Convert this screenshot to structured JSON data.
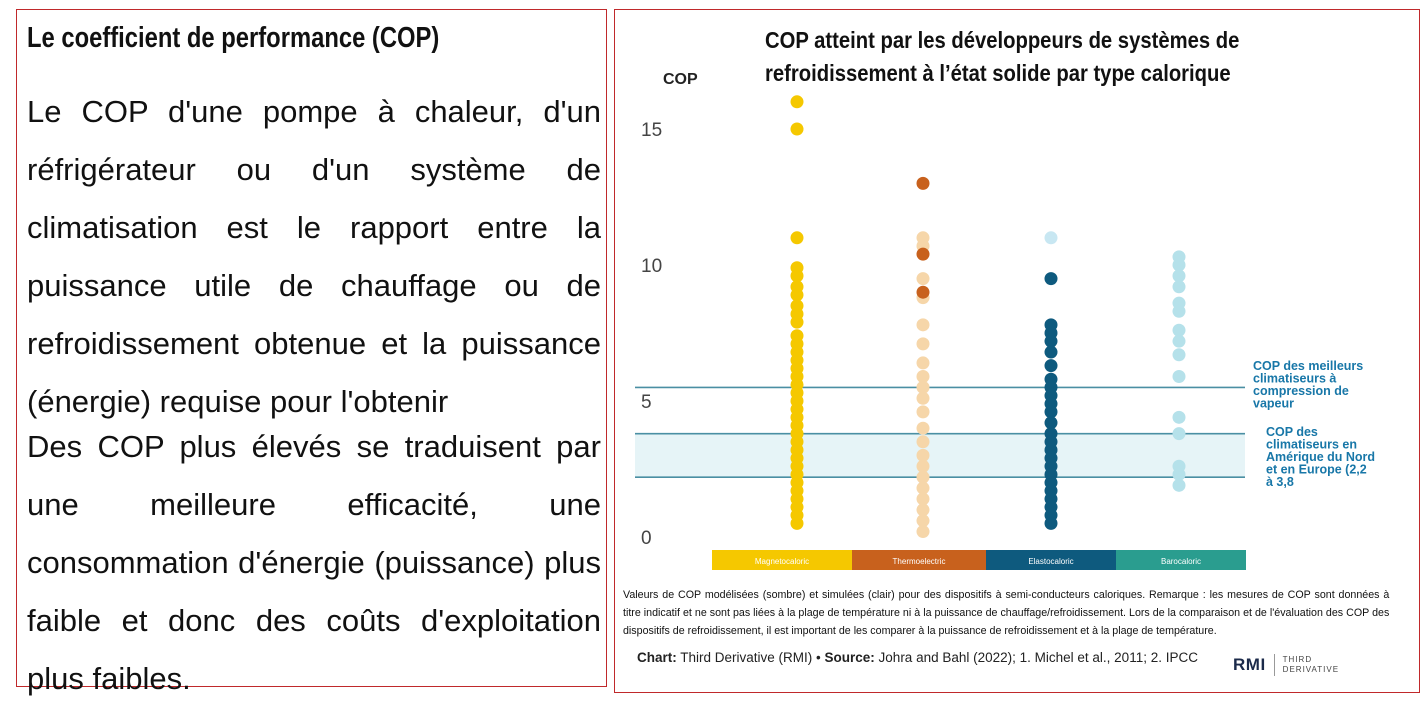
{
  "slide": {
    "title": "Le coefficient de performance (COP)",
    "paragraph1": "Le COP d'une pompe à chaleur, d'un réfrigérateur ou d'un système de climatisation est le rapport entre la puissance utile de chauffage ou de refroidissement obtenue et la puissance (énergie) requise pour l'obtenir",
    "paragraph2": "Des COP plus élevés se traduisent par une meilleure efficacité, une consommation d'énergie (puissance) plus faible et donc des coûts d'exploitation plus faibles."
  },
  "colors": {
    "border": "#c0292b",
    "magnetocaloric": "#f5c800",
    "thermoelectric": "#c8611d",
    "elastocaloric": "#0e5a7e",
    "barocaloric": "#2a9d8f",
    "reference_line": "#4a8fa3",
    "band": "#e6f4f7",
    "annotation": "#1877a8"
  },
  "chart_data": {
    "type": "scatter",
    "title": "COP atteint par les développeurs de systèmes de refroidissement à l’état solide par type calorique",
    "ylabel": "COP",
    "ylim": [
      0,
      17
    ],
    "yticks": [
      0,
      5,
      10,
      15
    ],
    "categories": [
      "Magnetocaloric",
      "Thermoelectric",
      "Elastocaloric",
      "Barocaloric"
    ],
    "series": [
      {
        "name": "Magnetocaloric",
        "modeled": [],
        "simulated": [
          16,
          15,
          11,
          9.9,
          9.6,
          9.2,
          8.9,
          8.5,
          8.2,
          7.9,
          7.4,
          7.1,
          6.8,
          6.5,
          6.2,
          5.9,
          5.6,
          5.3,
          5.0,
          4.7,
          4.4,
          4.1,
          3.8,
          3.5,
          3.2,
          2.9,
          2.6,
          2.3,
          2.0,
          1.7,
          1.4,
          1.1,
          0.8,
          0.5
        ]
      },
      {
        "name": "Thermoelectric",
        "modeled": [
          13,
          10.4,
          9.0
        ],
        "simulated": [
          11,
          10.7,
          9.5,
          8.8,
          7.8,
          7.1,
          6.4,
          5.9,
          5.5,
          5.1,
          4.6,
          4.0,
          3.5,
          3.0,
          2.6,
          2.2,
          1.8,
          1.4,
          1.0,
          0.6,
          0.2
        ]
      },
      {
        "name": "Elastocaloric",
        "modeled": [
          9.5,
          7.8,
          7.5,
          7.2,
          6.8,
          6.3,
          5.8,
          5.5,
          5.2,
          4.9,
          4.6,
          4.2,
          3.8,
          3.5,
          3.2,
          2.9,
          2.6,
          2.3,
          2.0,
          1.7,
          1.4,
          1.1,
          0.8,
          0.5
        ],
        "simulated": [
          11
        ]
      },
      {
        "name": "Barocaloric",
        "modeled": [],
        "simulated": [
          10.3,
          10.0,
          9.6,
          9.2,
          8.6,
          8.3,
          7.6,
          7.2,
          6.7,
          5.9,
          4.4,
          3.8,
          2.6,
          2.3,
          1.9
        ]
      }
    ],
    "reference_lines": [
      {
        "label": "COP des meilleurs climatiseurs à compression de vapeur",
        "value": 5.5
      },
      {
        "label": "COP des climatiseurs en Amérique du Nord et en Europe (2,2 à 3,8",
        "range": [
          2.2,
          3.8
        ]
      }
    ],
    "note": "Valeurs de COP modélisées (sombre) et simulées (clair) pour des dispositifs à semi-conducteurs caloriques. Remarque : les mesures de COP sont données à titre indicatif et ne sont pas liées à la plage de température ni à la puissance de chauffage/refroidissement. Lors de la comparaison et de l'évaluation des COP des dispositifs de refroidissement, il est important de les comparer à la puissance de refroidissement et à la plage de température.",
    "source": {
      "chart_label": "Chart:",
      "chart_value": "Third Derivative (RMI)",
      "separator": " • ",
      "source_label": "Source:",
      "source_value": "Johra and Bahl (2022); 1. Michel et al., 2011; 2. IPCC"
    }
  },
  "logo": {
    "mark": "RMI",
    "sub_line1": "THIRD",
    "sub_line2": "DERIVATIVE"
  }
}
